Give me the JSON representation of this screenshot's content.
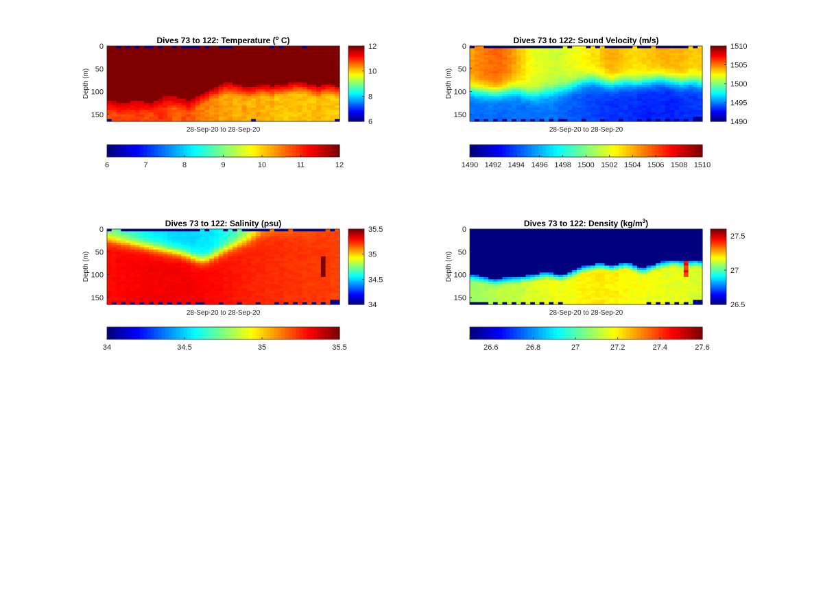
{
  "chart_data": [
    {
      "type": "heatmap",
      "variable": "temperature",
      "title_main": "Dives 73 to 122: Temperature (",
      "title_sup": "o",
      "title_rest": " C)",
      "ylabel": "Depth (m)",
      "xlabel": "28-Sep-20 to 28-Sep-20",
      "ylim": [
        0,
        165
      ],
      "yticks": [
        "0",
        "50",
        "100",
        "150"
      ],
      "clim": [
        6,
        12
      ],
      "side_colorbar_ticks": [
        "6",
        "8",
        "10",
        "12"
      ],
      "bottom_colorbar_ticks": [
        "6",
        "7",
        "8",
        "9",
        "10",
        "11",
        "12"
      ],
      "dives": [
        73,
        122
      ],
      "surface_value": 12.5,
      "layer_boundary_depth_by_dive": [
        120,
        122,
        124,
        125,
        124,
        122,
        120,
        121,
        123,
        124,
        121,
        116,
        112,
        110,
        112,
        115,
        117,
        118,
        115,
        110,
        105,
        100,
        95,
        90,
        86,
        82,
        82,
        84,
        86,
        88,
        90,
        88,
        86,
        85,
        86,
        88,
        87,
        85,
        84,
        82,
        80,
        80,
        82,
        84,
        86,
        88,
        86,
        84,
        85,
        88
      ],
      "deep_value_by_dive": [
        10.8,
        10.8,
        10.9,
        10.8,
        10.8,
        10.9,
        11.0,
        10.9,
        10.8,
        10.8,
        10.9,
        11.0,
        10.9,
        10.8,
        10.7,
        10.7,
        10.8,
        10.8,
        10.7,
        10.6,
        10.5,
        10.5,
        10.4,
        10.4,
        10.3,
        10.3,
        10.3,
        10.2,
        10.2,
        10.3,
        10.2,
        10.2,
        10.3,
        10.2,
        10.2,
        10.2,
        10.1,
        10.1,
        10.1,
        10.1,
        10.1,
        10.1,
        10.1,
        10.1,
        10.1,
        10.2,
        10.1,
        10.1,
        10.1,
        10.1
      ]
    },
    {
      "type": "heatmap",
      "variable": "sound_velocity",
      "title_main": "Dives 73 to 122: Sound Velocity (m/s)",
      "title_sup": "",
      "title_rest": "",
      "ylabel": "Depth (m)",
      "xlabel": "28-Sep-20 to 28-Sep-20",
      "ylim": [
        0,
        165
      ],
      "yticks": [
        "0",
        "50",
        "100",
        "150"
      ],
      "clim": [
        1490,
        1510
      ],
      "side_colorbar_ticks": [
        "1490",
        "1495",
        "1500",
        "1505",
        "1510"
      ],
      "bottom_colorbar_ticks": [
        "1490",
        "1492",
        "1494",
        "1496",
        "1498",
        "1500",
        "1502",
        "1504",
        "1506",
        "1508",
        "1510"
      ],
      "dives": [
        73,
        122
      ],
      "surface_value_by_dive": [
        1504.5,
        1504.8,
        1505.0,
        1505.2,
        1505.4,
        1505.5,
        1505.4,
        1505.2,
        1504.8,
        1504.4,
        1503.8,
        1503.2,
        1502.6,
        1502.2,
        1502.0,
        1501.8,
        1501.8,
        1501.6,
        1501.5,
        1501.5,
        1501.8,
        1502.0,
        1502.2,
        1502.4,
        1502.6,
        1502.8,
        1503.0,
        1503.2,
        1503.6,
        1504.0,
        1504.2,
        1504.0,
        1503.8,
        1503.6,
        1503.4,
        1503.2,
        1503.2,
        1503.4,
        1503.6,
        1503.8,
        1504.0,
        1504.1,
        1504.2,
        1504.1,
        1504.0,
        1503.9,
        1503.8,
        1503.6,
        1503.5,
        1503.5
      ],
      "deep_value_by_dive": [
        1494.6,
        1494.6,
        1494.5,
        1494.6,
        1494.7,
        1494.6,
        1494.5,
        1494.6,
        1494.7,
        1494.8,
        1494.7,
        1494.6,
        1494.5,
        1494.6,
        1494.7,
        1494.8,
        1494.8,
        1494.7,
        1494.6,
        1494.5,
        1494.4,
        1494.3,
        1494.2,
        1494.1,
        1494.0,
        1493.9,
        1493.8,
        1493.7,
        1493.6,
        1493.5,
        1493.4,
        1493.4,
        1493.5,
        1493.5,
        1493.4,
        1493.3,
        1493.2,
        1493.1,
        1493.1,
        1493.2,
        1493.3,
        1493.2,
        1493.1,
        1493.1,
        1493.2,
        1493.3,
        1493.4,
        1493.5,
        1493.6,
        1493.6
      ],
      "gradient_center_depth_by_dive": [
        95,
        97,
        98,
        99,
        100,
        101,
        100,
        98,
        96,
        94,
        96,
        100,
        104,
        106,
        105,
        102,
        100,
        100,
        98,
        95,
        92,
        88,
        84,
        80,
        77,
        75,
        74,
        76,
        78,
        80,
        82,
        80,
        78,
        77,
        78,
        80,
        79,
        77,
        76,
        74,
        72,
        72,
        74,
        76,
        78,
        80,
        78,
        76,
        77,
        80
      ]
    },
    {
      "type": "heatmap",
      "variable": "salinity",
      "title_main": "Dives 73 to 122: Salinity (psu)",
      "title_sup": "",
      "title_rest": "",
      "ylabel": "Depth (m)",
      "xlabel": "28-Sep-20 to 28-Sep-20",
      "ylim": [
        0,
        165
      ],
      "yticks": [
        "0",
        "50",
        "100",
        "150"
      ],
      "clim": [
        34,
        35.5
      ],
      "side_colorbar_ticks": [
        "34",
        "34.5",
        "35",
        "35.5"
      ],
      "bottom_colorbar_ticks": [
        "34",
        "34.5",
        "35",
        "35.5"
      ],
      "dives": [
        73,
        122
      ],
      "surface_value_by_dive": [
        34.72,
        34.7,
        34.68,
        34.66,
        34.64,
        34.62,
        34.6,
        34.58,
        34.56,
        34.55,
        34.54,
        34.53,
        34.52,
        34.51,
        34.5,
        34.5,
        34.5,
        34.5,
        34.5,
        34.51,
        34.52,
        34.52,
        34.53,
        34.55,
        34.58,
        34.6,
        34.62,
        34.66,
        34.7,
        34.75,
        34.82,
        34.9,
        34.98,
        35.05,
        35.08,
        35.1,
        35.12,
        35.13,
        35.14,
        35.15,
        35.16,
        35.17,
        35.17,
        35.18,
        35.18,
        35.19,
        35.19,
        35.2,
        35.2,
        35.2
      ],
      "deep_value_by_dive": [
        35.3,
        35.3,
        35.31,
        35.31,
        35.32,
        35.32,
        35.32,
        35.33,
        35.33,
        35.33,
        35.33,
        35.33,
        35.33,
        35.33,
        35.33,
        35.33,
        35.33,
        35.33,
        35.32,
        35.32,
        35.32,
        35.31,
        35.31,
        35.3,
        35.3,
        35.29,
        35.29,
        35.28,
        35.28,
        35.27,
        35.27,
        35.26,
        35.26,
        35.26,
        35.25,
        35.25,
        35.25,
        35.25,
        35.24,
        35.24,
        35.24,
        35.24,
        35.23,
        35.23,
        35.23,
        35.23,
        35.23,
        35.23,
        35.22,
        35.22
      ],
      "gradient_center_depth_by_dive": [
        22,
        24,
        26,
        28,
        30,
        32,
        34,
        36,
        38,
        40,
        42,
        44,
        46,
        48,
        50,
        52,
        55,
        58,
        62,
        65,
        67,
        65,
        60,
        55,
        50,
        45,
        40,
        36,
        32,
        28,
        24,
        20,
        16,
        12,
        10,
        10,
        10,
        10,
        10,
        10,
        10,
        10,
        10,
        10,
        10,
        10,
        10,
        10,
        10,
        10
      ]
    },
    {
      "type": "heatmap",
      "variable": "density",
      "title_main": "Dives 73 to 122: Density (kg/m",
      "title_sup": "3",
      "title_rest": ")",
      "ylabel": "Depth (m)",
      "xlabel": "28-Sep-20 to 28-Sep-20",
      "ylim": [
        0,
        165
      ],
      "yticks": [
        "0",
        "50",
        "100",
        "150"
      ],
      "clim": [
        26.5,
        27.6
      ],
      "side_colorbar_ticks": [
        "26.5",
        "27",
        "27.5"
      ],
      "bottom_colorbar_ticks": [
        "26.6",
        "26.8",
        "27",
        "27.2",
        "27.4",
        "27.6"
      ],
      "dives": [
        73,
        122
      ],
      "surface_value": 26.45,
      "layer_boundary_depth_by_dive": [
        100,
        102,
        104,
        106,
        108,
        110,
        109,
        107,
        106,
        105,
        104,
        103,
        102,
        100,
        98,
        96,
        95,
        96,
        98,
        100,
        98,
        95,
        90,
        86,
        82,
        80,
        78,
        76,
        76,
        78,
        80,
        78,
        76,
        74,
        76,
        80,
        84,
        86,
        82,
        78,
        74,
        72,
        70,
        68,
        68,
        70,
        72,
        70,
        68,
        70
      ],
      "deep_value_by_dive": [
        27.08,
        27.08,
        27.09,
        27.09,
        27.1,
        27.11,
        27.12,
        27.12,
        27.12,
        27.12,
        27.12,
        27.13,
        27.14,
        27.15,
        27.15,
        27.16,
        27.16,
        27.16,
        27.17,
        27.17,
        27.17,
        27.18,
        27.18,
        27.19,
        27.2,
        27.2,
        27.2,
        27.21,
        27.21,
        27.2,
        27.2,
        27.2,
        27.19,
        27.19,
        27.18,
        27.18,
        27.18,
        27.18,
        27.17,
        27.17,
        27.17,
        27.17,
        27.16,
        27.16,
        27.16,
        27.16,
        27.16,
        27.15,
        27.15,
        27.15
      ]
    }
  ]
}
